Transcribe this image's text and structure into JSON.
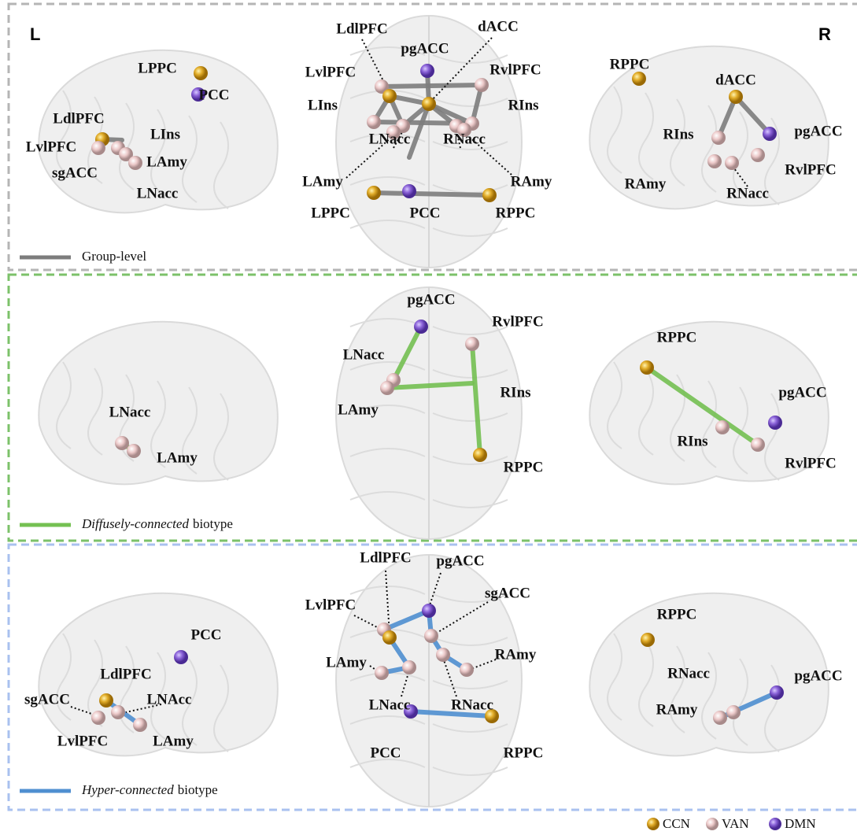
{
  "side_labels": {
    "left": "L",
    "right": "R"
  },
  "panels": [
    {
      "legend": {
        "text": "Group-level"
      },
      "views": [
        {
          "labels": [
            "LPPC",
            "PCC",
            "LdlPFC",
            "LIns",
            "LvlPFC",
            "LAmy",
            "sgACC",
            "LNacc"
          ]
        },
        {
          "labels": [
            "LdlPFC",
            "dACC",
            "pgACC",
            "LvlPFC",
            "RvlPFC",
            "LIns",
            "RIns",
            "LNacc",
            "RNacc",
            "LAmy",
            "RAmy",
            "LPPC",
            "PCC",
            "RPPC"
          ]
        },
        {
          "labels": [
            "RPPC",
            "dACC",
            "RIns",
            "pgACC",
            "RvlPFC",
            "RAmy",
            "RNacc"
          ]
        }
      ]
    },
    {
      "legend": {
        "emphasis": "Diffusely-connected",
        "text": "biotype"
      },
      "views": [
        {
          "labels": [
            "LNacc",
            "LAmy"
          ]
        },
        {
          "labels": [
            "pgACC",
            "RvlPFC",
            "LNacc",
            "RIns",
            "LAmy",
            "RPPC"
          ]
        },
        {
          "labels": [
            "RPPC",
            "pgACC",
            "RIns",
            "RvlPFC"
          ]
        }
      ]
    },
    {
      "legend": {
        "emphasis": "Hyper-connected",
        "text": "biotype"
      },
      "views": [
        {
          "labels": [
            "PCC",
            "LdlPFC",
            "sgACC",
            "LNAcc",
            "LvlPFC",
            "LAmy"
          ]
        },
        {
          "labels": [
            "LdlPFC",
            "pgACC",
            "sgACC",
            "LvlPFC",
            "RAmy",
            "LAmy",
            "LNacc",
            "RNacc",
            "PCC",
            "RPPC"
          ]
        },
        {
          "labels": [
            "RPPC",
            "pgACC",
            "RNacc",
            "RAmy"
          ]
        }
      ]
    }
  ],
  "network_legend": [
    "CCN",
    "VAN",
    "DMN"
  ]
}
